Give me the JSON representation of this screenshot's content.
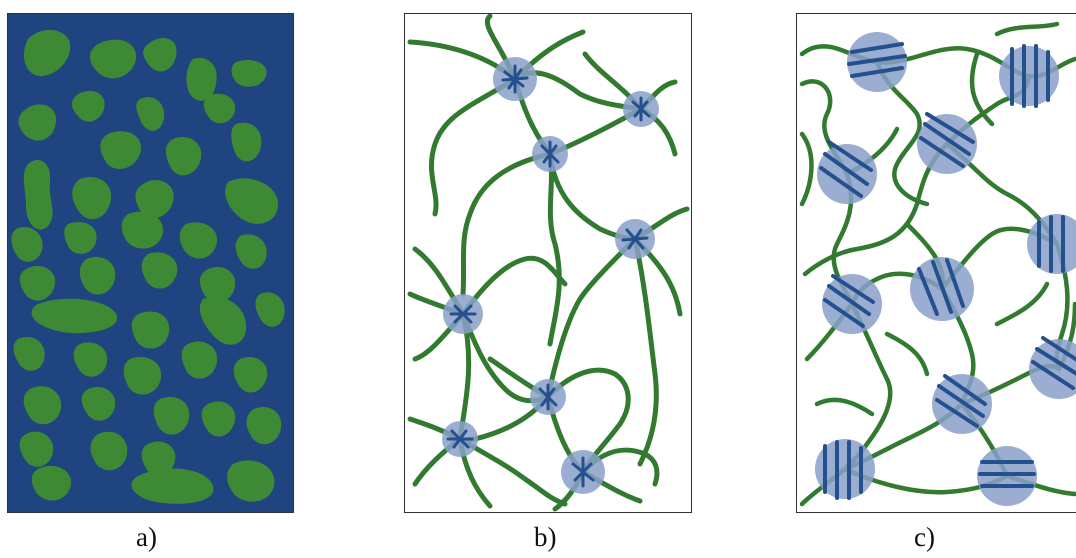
{
  "captions": {
    "a": "a)",
    "b": "b)",
    "c": "c)"
  },
  "colors": {
    "matrix_blue": "#1f4480",
    "domain_green": "#3e8a34",
    "chain_green": "#317a30",
    "core_light_blue": "#8aa0c9",
    "stripe_blue": "#24508f",
    "background": "#ffffff",
    "border": "#333333"
  },
  "panels": [
    {
      "id": "a",
      "kind": "dispersed-domains-in-matrix"
    },
    {
      "id": "b",
      "kind": "star-micelle-network"
    },
    {
      "id": "c",
      "kind": "lamellar-core-network"
    }
  ]
}
